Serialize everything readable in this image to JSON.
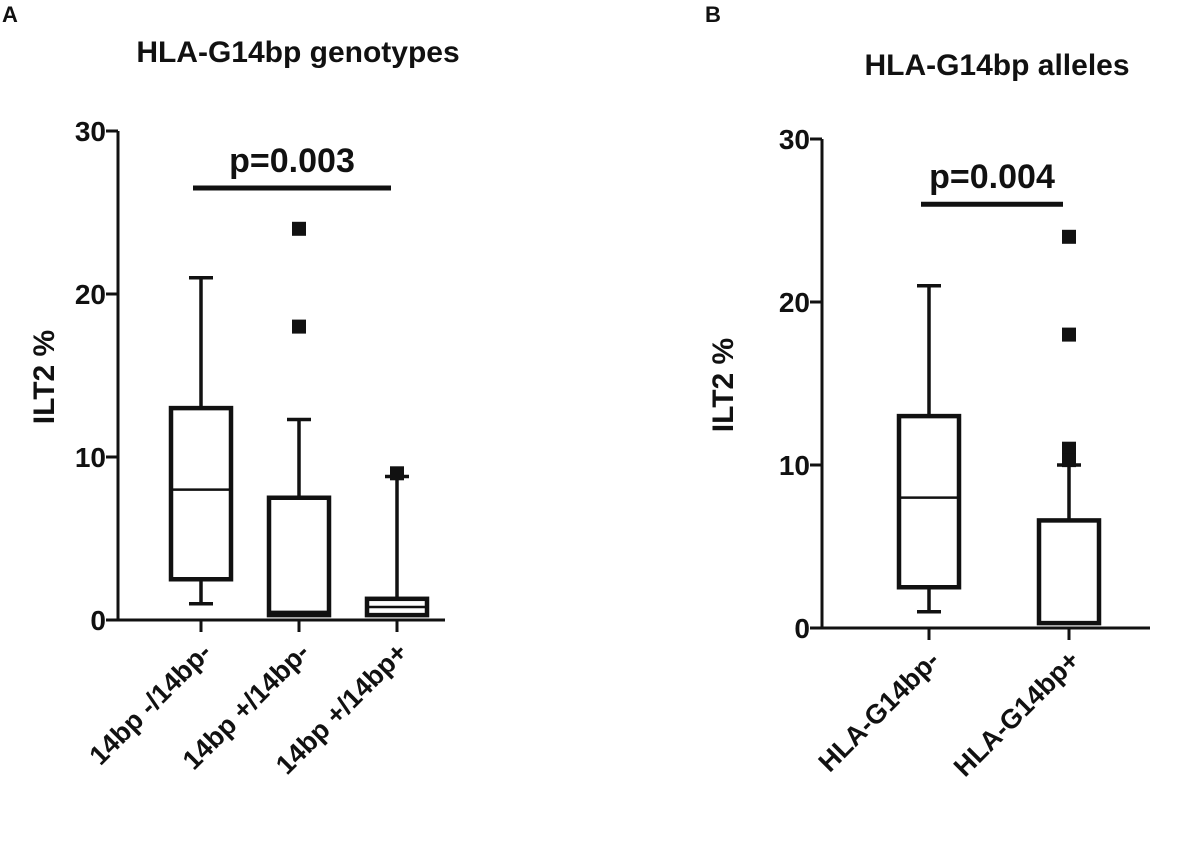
{
  "chart_data": [
    {
      "type": "box",
      "panel": "A",
      "title": "HLA-G14bp genotypes",
      "ylabel": "ILT2 %",
      "xlabel": "",
      "ylim": [
        0,
        30
      ],
      "yticks": [
        0,
        10,
        20,
        30
      ],
      "categories": [
        "14bp -/14bp-",
        "14bp +/14bp-",
        "14bp +/14bp+"
      ],
      "boxes": [
        {
          "whisker_low": 1,
          "q1": 2.5,
          "median": 8,
          "q3": 13,
          "whisker_high": 21,
          "outliers": []
        },
        {
          "whisker_low": 0.3,
          "q1": 0.3,
          "median": 0.5,
          "q3": 7.5,
          "whisker_high": 12.3,
          "outliers": [
            24,
            18
          ]
        },
        {
          "whisker_low": 0.3,
          "q1": 0.3,
          "median": 0.8,
          "q3": 1.3,
          "whisker_high": 8.8,
          "outliers": [
            9
          ]
        }
      ],
      "significance": {
        "label": "p=0.003",
        "from": 0,
        "to": 2,
        "y": 26.5
      }
    },
    {
      "type": "box",
      "panel": "B",
      "title": "HLA-G14bp alleles",
      "ylabel": "ILT2 %",
      "xlabel": "",
      "ylim": [
        0,
        30
      ],
      "yticks": [
        0,
        10,
        20,
        30
      ],
      "categories": [
        "HLA-G14bp-",
        "HLA-G14bp+"
      ],
      "boxes": [
        {
          "whisker_low": 1,
          "q1": 2.5,
          "median": 8,
          "q3": 13,
          "whisker_high": 21,
          "outliers": []
        },
        {
          "whisker_low": 0.3,
          "q1": 0.3,
          "median": 0.3,
          "q3": 6.6,
          "whisker_high": 10,
          "outliers": [
            24,
            18,
            11,
            10.3
          ]
        }
      ],
      "significance": {
        "label": "p=0.004",
        "from": 0,
        "to": 1,
        "y": 26
      }
    }
  ]
}
